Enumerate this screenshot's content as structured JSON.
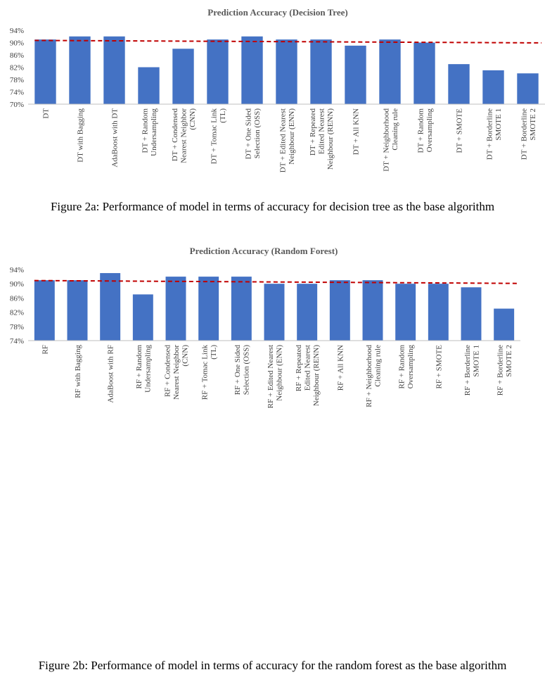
{
  "chart_data": [
    {
      "type": "bar",
      "title": "Prediction Accuracy (Decision Tree)",
      "caption": "Figure 2a: Performance of model in terms of accuracy for decision tree as the base algorithm",
      "categories": [
        "DT",
        "DT with Bagging",
        "AdaBoost with DT",
        "DT + Random Undersampling",
        "DT + Condensed Nearest Neighbor (CNN)",
        "DT + Tomac Link (TL)",
        "DT + One Sided Selection (OSS)",
        "DT + Edited Nearest Neighbour (ENN)",
        "DT + Repeated Edited Nearest Neighbour (RENN)",
        "DT + All KNN",
        "DT + Neighborhood Cleaning rule",
        "DT + Random Oversampling",
        "DT + SMOTE",
        "DT + Borderline SMOTE 1",
        "DT + Borderline SMOTE 2"
      ],
      "category_lines": [
        [
          "DT"
        ],
        [
          "DT with Bagging"
        ],
        [
          "AdaBoost with DT"
        ],
        [
          "DT + Random",
          "Undersampling"
        ],
        [
          "DT + Condensed",
          "Nearest Neighbor",
          "(CNN)"
        ],
        [
          "DT + Tomac Link",
          "(TL)"
        ],
        [
          "DT + One Sided",
          "Selection (OSS)"
        ],
        [
          "DT + Edited Nearest",
          "Neighbour (ENN)"
        ],
        [
          "DT + Repeated",
          "Edited Nearest",
          "Neighbour (RENN)"
        ],
        [
          "DT + All KNN"
        ],
        [
          "DT + Neighborhood",
          "Cleaning rule"
        ],
        [
          "DT + Random",
          "Oversampling"
        ],
        [
          "DT + SMOTE"
        ],
        [
          "DT + Borderline",
          "SMOTE 1"
        ],
        [
          "DT + Borderline",
          "SMOTE 2"
        ]
      ],
      "values": [
        91,
        92,
        92,
        82,
        88,
        91,
        92,
        91,
        91,
        89,
        91,
        90,
        83,
        81,
        80
      ],
      "ylim": [
        70,
        94
      ],
      "yticks": [
        70,
        74,
        78,
        82,
        86,
        90,
        94
      ],
      "ytick_suffix": "%",
      "trendline": [
        90.7,
        89.9
      ],
      "bar_color": "#4472C4",
      "trend_color": "#C00000",
      "grid": false
    },
    {
      "type": "bar",
      "title": "Prediction Accuracy (Random Forest)",
      "caption": "Figure 2b: Performance of model in terms of accuracy for the random forest as the base algorithm",
      "categories": [
        "RF",
        "RF with Bagging",
        "AdaBoost with RF",
        "RF + Random Undersampling",
        "RF + Condensed Nearest Neighbor (CNN)",
        "RF + Tomac Link (TL)",
        "RF + One Sided Selection (OSS)",
        "RF + Edited Nearest Neighbour (ENN)",
        "RF + Repeated Edited Nearest Neighbour (RENN)",
        "RF + All KNN",
        "RF + Neighborhood Cleaning rule",
        "RF + Random Oversampling",
        "RF + SMOTE",
        "RF + Borderline SMOTE 1",
        "RF + Borderline SMOTE 2"
      ],
      "category_lines": [
        [
          "RF"
        ],
        [
          "RF with Bagging"
        ],
        [
          "AdaBoost with RF"
        ],
        [
          "RF + Random",
          "Undersampling"
        ],
        [
          "RF + Condensed",
          "Nearest Neighbor",
          "(CNN)"
        ],
        [
          "RF + Tomac Link",
          "(TL)"
        ],
        [
          "RF + One Sided",
          "Selection (OSS)"
        ],
        [
          "RF + Edited Nearest",
          "Neighbour (ENN)"
        ],
        [
          "RF + Repeated",
          "Edited Nearest",
          "Neighbour (RENN)"
        ],
        [
          "RF + All KNN"
        ],
        [
          "RF + Neighborhood",
          "Cleaning rule"
        ],
        [
          "RF + Random",
          "Oversampling"
        ],
        [
          "RF + SMOTE"
        ],
        [
          "RF + Borderline",
          "SMOTE 1"
        ],
        [
          "RF + Borderline",
          "SMOTE 2"
        ]
      ],
      "values": [
        91,
        91,
        93,
        87,
        92,
        92,
        92,
        90,
        90,
        91,
        91,
        90,
        90,
        89,
        83
      ],
      "ylim": [
        74,
        94
      ],
      "yticks": [
        74,
        78,
        82,
        86,
        90,
        94
      ],
      "ytick_suffix": "%",
      "trendline": [
        90.9,
        90.1
      ],
      "bar_color": "#4472C4",
      "trend_color": "#C00000",
      "grid": false
    }
  ]
}
